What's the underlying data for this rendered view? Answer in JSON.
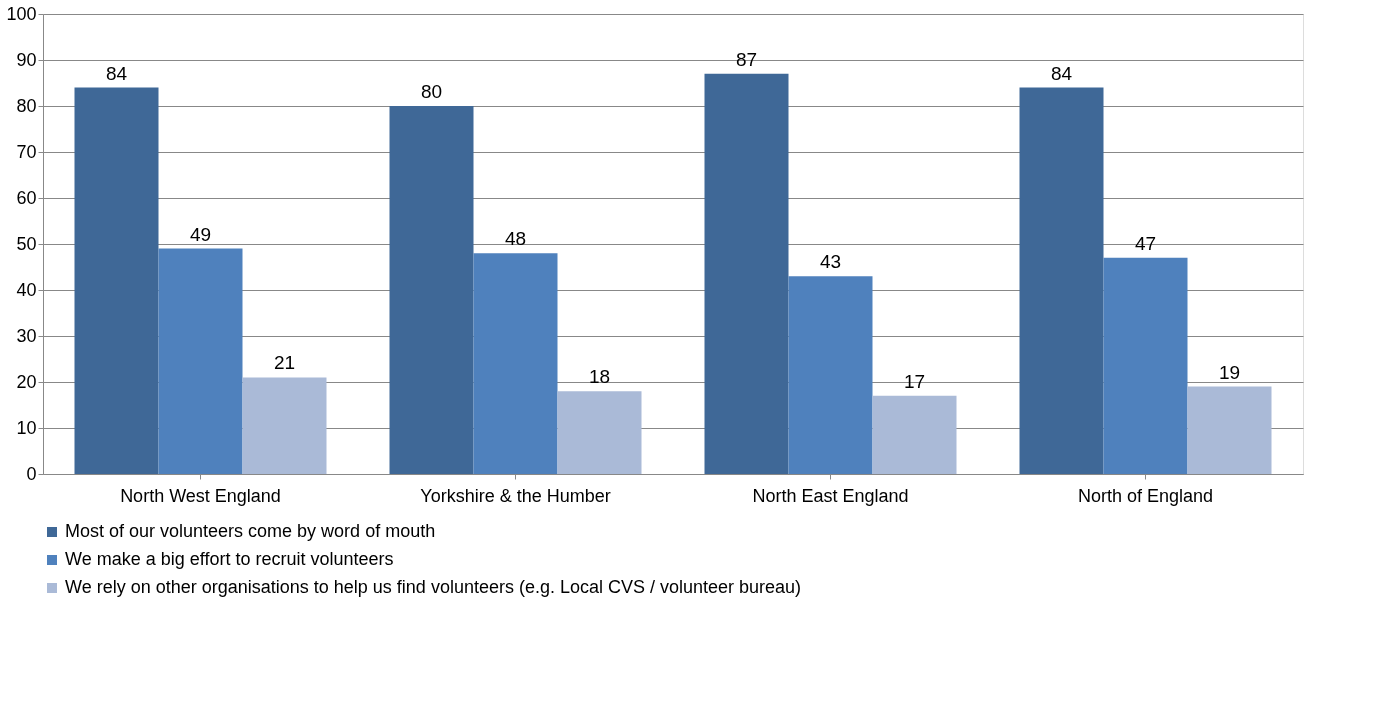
{
  "chart_data": {
    "type": "bar",
    "categories": [
      "North West England",
      "Yorkshire & the Humber",
      "North East England",
      "North of England"
    ],
    "series": [
      {
        "name": "Most of our volunteers come by word of mouth",
        "color": "#3f6897",
        "values": [
          84,
          80,
          87,
          84
        ]
      },
      {
        "name": "We make a big effort to recruit volunteers",
        "color": "#4f81bd",
        "values": [
          49,
          48,
          43,
          47
        ]
      },
      {
        "name": "We rely on other organisations to help us find volunteers (e.g. Local CVS / volunteer bureau)",
        "color": "#aabad7",
        "values": [
          21,
          18,
          17,
          19
        ]
      }
    ],
    "ylim": [
      0,
      100
    ],
    "yticks": [
      0,
      10,
      20,
      30,
      40,
      50,
      60,
      70,
      80,
      90,
      100
    ],
    "grid": "y",
    "legend": "bottom",
    "data_labels": true
  }
}
